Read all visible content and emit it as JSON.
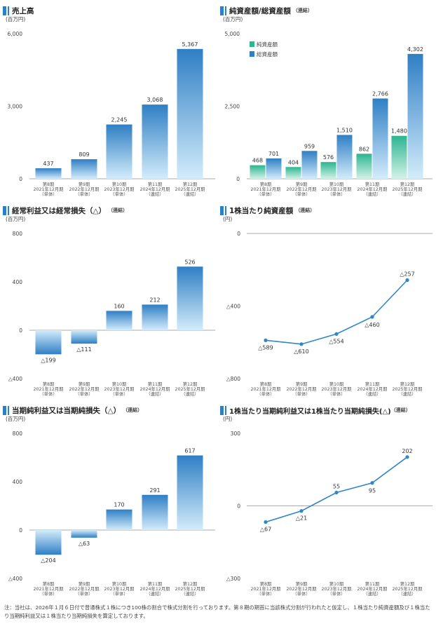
{
  "colors": {
    "accent": "#2f7fc4",
    "bar_top": "#2f7fc4",
    "bar_bottom": "#d3ecfb",
    "green_top": "#2cb58f",
    "green_bottom": "#d3f2e8",
    "line": "#2f86c8"
  },
  "periods": [
    {
      "p": "第8期",
      "d": "2021年12月期",
      "k": "（単体）"
    },
    {
      "p": "第9期",
      "d": "2022年12月期",
      "k": "（単体）"
    },
    {
      "p": "第10期",
      "d": "2023年12月期",
      "k": "（単体）"
    },
    {
      "p": "第11期",
      "d": "2024年12月期",
      "k": "（連結）"
    },
    {
      "p": "第12期",
      "d": "2025年12月期",
      "k": "（連結）"
    }
  ],
  "chart_data": [
    {
      "id": "sales",
      "type": "bar",
      "title": "売上高",
      "subtitle": "",
      "unit": "(百万円)",
      "categories": [
        "第8期",
        "第9期",
        "第10期",
        "第11期",
        "第12期"
      ],
      "ylim": [
        0,
        6000
      ],
      "yticks": [
        0,
        3000,
        6000
      ],
      "ytick_labels": [
        "0",
        "3,000",
        "6,000"
      ],
      "series": [
        {
          "values": [
            437,
            809,
            2245,
            3068,
            5367
          ],
          "labels": [
            "437",
            "809",
            "2,245",
            "3,068",
            "5,367"
          ]
        }
      ]
    },
    {
      "id": "assets",
      "type": "bar",
      "title": "純資産額/総資産額",
      "subtitle": "（連結）",
      "unit": "(百万円)",
      "categories": [
        "第8期",
        "第9期",
        "第10期",
        "第11期",
        "第12期"
      ],
      "ylim": [
        0,
        5000
      ],
      "yticks": [
        0,
        2500,
        5000
      ],
      "ytick_labels": [
        "0",
        "2,500",
        "5,000"
      ],
      "legend": "top-left",
      "series": [
        {
          "name": "純資産額",
          "values": [
            468,
            404,
            576,
            862,
            1480
          ],
          "labels": [
            "468",
            "404",
            "576",
            "862",
            "1,480"
          ]
        },
        {
          "name": "総資産額",
          "values": [
            701,
            959,
            1510,
            2766,
            4302
          ],
          "labels": [
            "701",
            "959",
            "1,510",
            "2,766",
            "4,302"
          ]
        }
      ]
    },
    {
      "id": "ordinary",
      "type": "bar",
      "title": "経常利益又は経常損失（△）",
      "subtitle": "（連結）",
      "unit": "(百万円)",
      "categories": [
        "第8期",
        "第9期",
        "第10期",
        "第11期",
        "第12期"
      ],
      "ylim": [
        -400,
        800
      ],
      "yticks": [
        -400,
        0,
        400,
        800
      ],
      "ytick_labels": [
        "△400",
        "0",
        "400",
        "800"
      ],
      "series": [
        {
          "values": [
            -199,
            -111,
            160,
            212,
            526
          ],
          "labels": [
            "△199",
            "△111",
            "160",
            "212",
            "526"
          ]
        }
      ]
    },
    {
      "id": "bps",
      "type": "line",
      "title": "1株当たり純資産額",
      "subtitle": "（連結）",
      "unit": "(円)",
      "categories": [
        "第8期",
        "第9期",
        "第10期",
        "第11期",
        "第12期"
      ],
      "ylim": [
        -800,
        0
      ],
      "yticks": [
        -800,
        -400,
        0
      ],
      "ytick_labels": [
        "△800",
        "△400",
        "0"
      ],
      "series": [
        {
          "values": [
            -589,
            -610,
            -554,
            -460,
            -257
          ],
          "labels": [
            "△589",
            "△610",
            "△554",
            "△460",
            "△257"
          ]
        }
      ]
    },
    {
      "id": "netincome",
      "type": "bar",
      "title": "当期純利益又は当期純損失（△）",
      "subtitle": "（連結）",
      "unit": "(百万円)",
      "categories": [
        "第8期",
        "第9期",
        "第10期",
        "第11期",
        "第12期"
      ],
      "ylim": [
        -400,
        800
      ],
      "yticks": [
        -400,
        0,
        400,
        800
      ],
      "ytick_labels": [
        "△400",
        "0",
        "400",
        "800"
      ],
      "series": [
        {
          "values": [
            -204,
            -63,
            170,
            291,
            617
          ],
          "labels": [
            "△204",
            "△63",
            "170",
            "291",
            "617"
          ]
        }
      ]
    },
    {
      "id": "eps",
      "type": "line",
      "title": "1株当たり当期純利益又は1株当たり当期純損失(△)",
      "subtitle": "（連結）",
      "unit": "(円)",
      "categories": [
        "第8期",
        "第9期",
        "第10期",
        "第11期",
        "第12期"
      ],
      "ylim": [
        -300,
        300
      ],
      "yticks": [
        -300,
        0,
        300
      ],
      "ytick_labels": [
        "△300",
        "0",
        "300"
      ],
      "series": [
        {
          "values": [
            -67,
            -21,
            55,
            95,
            202
          ],
          "labels": [
            "△67",
            "△21",
            "55",
            "95",
            "202"
          ]
        }
      ]
    }
  ],
  "footnote": "注：当社は、2026年１月６日付で普通株式１株につき100株の割合で株式分割を行っております。第８期の期首に当該株式分割が行われたと仮定し、１株当たり純資産額及び１株当たり当期純利益又は１株当たり当期純損失を算定しております。"
}
